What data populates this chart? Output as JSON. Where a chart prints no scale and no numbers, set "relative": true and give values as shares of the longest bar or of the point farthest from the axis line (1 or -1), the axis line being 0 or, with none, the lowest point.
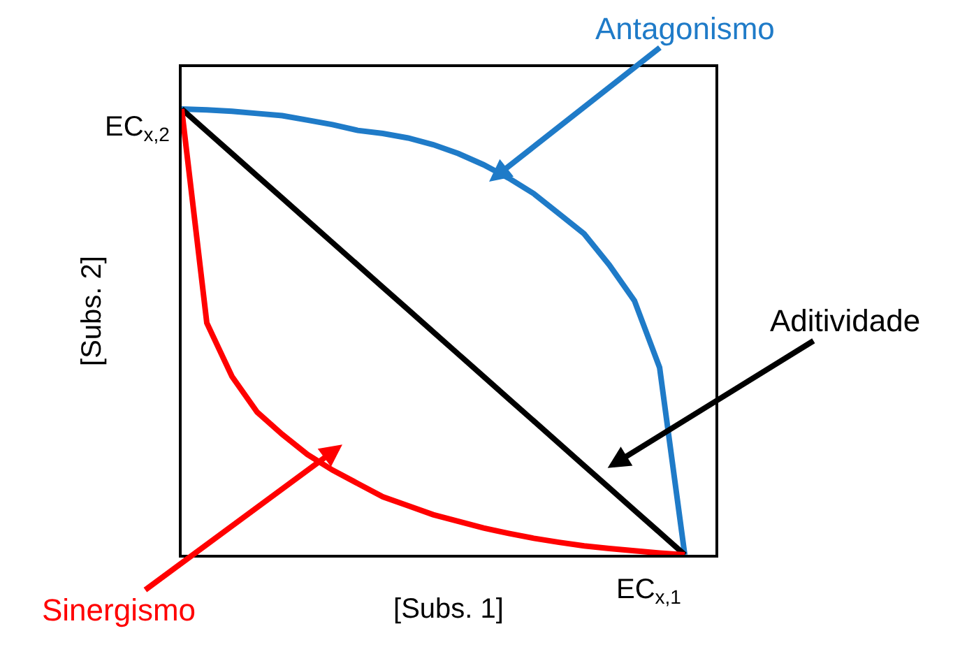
{
  "chart_data": {
    "type": "line",
    "xlabel": "[Subs. 1]",
    "ylabel": "[Subs. 2]",
    "relative": true,
    "tick_labels": false,
    "marker": "none",
    "line_style": "solid",
    "categories": [
      null,
      null,
      null,
      null,
      null,
      null,
      null,
      null,
      null,
      null,
      null,
      null,
      null,
      null,
      null,
      null,
      null,
      null,
      null,
      null,
      null
    ],
    "series": [
      {
        "color": "#1f7bc8",
        "values": [
          1,
          0.998,
          0.995,
          0.99,
          0.985,
          0.975,
          0.965,
          0.952,
          0.945,
          0.935,
          0.92,
          0.9,
          0.875,
          0.845,
          0.81,
          0.765,
          0.72,
          0.65,
          0.57,
          0.42,
          0
        ]
      },
      {
        "color": "#000000",
        "values": [
          1,
          0.95,
          0.9,
          0.85,
          0.8,
          0.75,
          0.7,
          0.65,
          0.6,
          0.55,
          0.5,
          0.45,
          0.4,
          0.35,
          0.3,
          0.25,
          0.2,
          0.15,
          0.1,
          0.05,
          0
        ]
      },
      {
        "color": "#ff0000",
        "values": [
          1,
          0.52,
          0.4,
          0.32,
          0.27,
          0.225,
          0.19,
          0.16,
          0.13,
          0.11,
          0.09,
          0.075,
          0.06,
          0.048,
          0.037,
          0.028,
          0.02,
          0.014,
          0.009,
          0.004,
          0
        ]
      }
    ],
    "annotations": [
      "Antagonismo",
      "Aditividade",
      "Sinergismo",
      "EC$_{x,1}$",
      "EC$_{x,2}$"
    ]
  }
}
